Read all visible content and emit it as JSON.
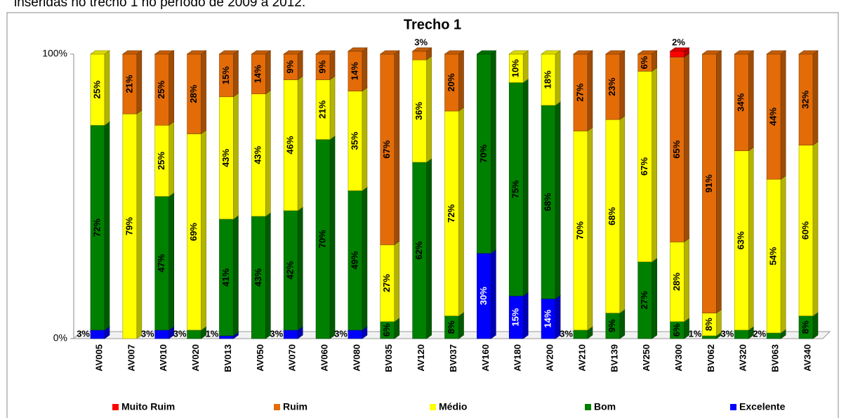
{
  "chart_data": {
    "type": "stacked-bar",
    "caption": "inseridas no trecho 1 no período de 2009 a 2012.",
    "title": "Trecho 1",
    "categories": [
      "AV005",
      "AV007",
      "AV010",
      "AV020",
      "BV013",
      "AV050",
      "AV070",
      "AV060",
      "AV080",
      "BV035",
      "AV120",
      "BV037",
      "AV160",
      "AV180",
      "AV200",
      "AV210",
      "BV139",
      "AV250",
      "AV300",
      "BV062",
      "AV320",
      "BV063",
      "AV340"
    ],
    "ylim": [
      0,
      100
    ],
    "yticks": [
      {
        "value": 0,
        "label": "0%"
      },
      {
        "value": 100,
        "label": "100%"
      }
    ],
    "legend": "bottom",
    "series": [
      {
        "name": "Excelente",
        "color": "#0000ff",
        "values": [
          3,
          null,
          3,
          null,
          1,
          null,
          3,
          null,
          3,
          null,
          null,
          null,
          30,
          15,
          14,
          null,
          null,
          null,
          null,
          null,
          null,
          null,
          null
        ],
        "value_labels": [
          "3%",
          null,
          "3%",
          null,
          "1%",
          null,
          "3%",
          null,
          "3%",
          null,
          null,
          null,
          "30%",
          "15%",
          "14%",
          null,
          null,
          null,
          null,
          null,
          null,
          null,
          null
        ]
      },
      {
        "name": "Bom",
        "color": "#008000",
        "values": [
          72,
          null,
          47,
          3,
          41,
          43,
          42,
          70,
          49,
          6,
          62,
          8,
          70,
          75,
          68,
          3,
          9,
          27,
          6,
          1,
          3,
          2,
          8
        ],
        "value_labels": [
          "72%",
          null,
          "47%",
          "3%",
          "41%",
          "43%",
          "42%",
          "70%",
          "49%",
          "6%",
          "62%",
          "8%",
          "70%",
          "75%",
          "68%",
          "3%",
          "9%",
          "27%",
          "6%",
          "1%",
          "3%",
          "2%",
          "8%"
        ]
      },
      {
        "name": "Médio",
        "color": "#ffff00",
        "values": [
          25,
          79,
          25,
          69,
          43,
          43,
          46,
          21,
          35,
          27,
          36,
          72,
          null,
          10,
          18,
          70,
          68,
          67,
          28,
          8,
          63,
          54,
          60
        ],
        "value_labels": [
          "25%",
          "79%",
          "25%",
          "69%",
          "43%",
          "43%",
          "46%",
          "21%",
          "35%",
          "27%",
          "36%",
          "72%",
          null,
          "10%",
          "18%",
          "70%",
          "68%",
          "67%",
          "28%",
          "8%",
          "63%",
          "54%",
          "60%"
        ]
      },
      {
        "name": "Ruim",
        "color": "#e36c09",
        "values": [
          null,
          21,
          25,
          28,
          15,
          14,
          9,
          9,
          14,
          67,
          3,
          20,
          null,
          null,
          null,
          27,
          23,
          6,
          65,
          91,
          34,
          44,
          32
        ],
        "value_labels": [
          null,
          "21%",
          "25%",
          "28%",
          "15%",
          "14%",
          "9%",
          "9%",
          "14%",
          "67%",
          "3%",
          "20%",
          null,
          null,
          null,
          "27%",
          "23%",
          "6%",
          "65%",
          "91%",
          "34%",
          "44%",
          "32%"
        ]
      },
      {
        "name": "Muito Ruim",
        "color": "#ff0000",
        "values": [
          null,
          null,
          null,
          null,
          null,
          null,
          null,
          null,
          null,
          null,
          null,
          null,
          null,
          null,
          null,
          null,
          null,
          null,
          2,
          null,
          null,
          null,
          null
        ],
        "value_labels": [
          null,
          null,
          null,
          null,
          null,
          null,
          null,
          null,
          null,
          null,
          null,
          null,
          null,
          null,
          null,
          null,
          null,
          null,
          "2%",
          null,
          null,
          null,
          null
        ]
      }
    ]
  }
}
